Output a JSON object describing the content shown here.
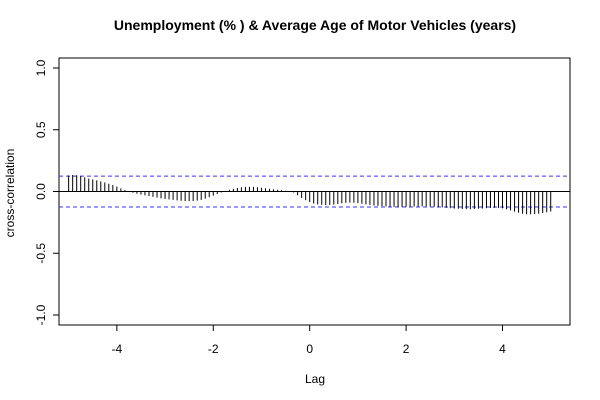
{
  "chart_data": {
    "type": "bar",
    "subtype": "cross-correlation",
    "title": "Unemployment (% ) & Average Age of Motor Vehicles (years)",
    "xlabel": "Lag",
    "ylabel": "cross-correlation",
    "xlim": [
      -5.2,
      5.4
    ],
    "ylim": [
      -1.0,
      1.0
    ],
    "xticks": [
      -4,
      -2,
      0,
      2,
      4
    ],
    "yticks": [
      -1.0,
      -0.5,
      0.0,
      0.5,
      1.0
    ],
    "xtick_labels": [
      "-4",
      "-2",
      "0",
      "2",
      "4"
    ],
    "ytick_labels": [
      "-1.0",
      "-0.5",
      "0.0",
      "0.5",
      "1.0"
    ],
    "confidence_limit": 0.125,
    "lag_range": [
      -5,
      5
    ],
    "lag_step": 0.08333,
    "x": [
      -5.0,
      -4.9167,
      -4.8333,
      -4.75,
      -4.6667,
      -4.5833,
      -4.5,
      -4.4167,
      -4.3333,
      -4.25,
      -4.1667,
      -4.0833,
      -4.0,
      -3.9167,
      -3.8333,
      -3.75,
      -3.6667,
      -3.5833,
      -3.5,
      -3.4167,
      -3.3333,
      -3.25,
      -3.1667,
      -3.0833,
      -3.0,
      -2.9167,
      -2.8333,
      -2.75,
      -2.6667,
      -2.5833,
      -2.5,
      -2.4167,
      -2.3333,
      -2.25,
      -2.1667,
      -2.0833,
      -2.0,
      -1.9167,
      -1.8333,
      -1.75,
      -1.6667,
      -1.5833,
      -1.5,
      -1.4167,
      -1.3333,
      -1.25,
      -1.1667,
      -1.0833,
      -1.0,
      -0.9167,
      -0.8333,
      -0.75,
      -0.6667,
      -0.5833,
      -0.5,
      -0.4167,
      -0.3333,
      -0.25,
      -0.1667,
      -0.0833,
      0.0,
      0.0833,
      0.1667,
      0.25,
      0.3333,
      0.4167,
      0.5,
      0.5833,
      0.6667,
      0.75,
      0.8333,
      0.9167,
      1.0,
      1.0833,
      1.1667,
      1.25,
      1.3333,
      1.4167,
      1.5,
      1.5833,
      1.6667,
      1.75,
      1.8333,
      1.9167,
      2.0,
      2.0833,
      2.1667,
      2.25,
      2.3333,
      2.4167,
      2.5,
      2.5833,
      2.6667,
      2.75,
      2.8333,
      2.9167,
      3.0,
      3.0833,
      3.1667,
      3.25,
      3.3333,
      3.4167,
      3.5,
      3.5833,
      3.6667,
      3.75,
      3.8333,
      3.9167,
      4.0,
      4.0833,
      4.1667,
      4.25,
      4.3333,
      4.4167,
      4.5,
      4.5833,
      4.6667,
      4.75,
      4.8333,
      4.9167,
      5.0
    ],
    "values": [
      0.13,
      0.134,
      0.132,
      0.125,
      0.115,
      0.105,
      0.098,
      0.09,
      0.082,
      0.073,
      0.063,
      0.052,
      0.04,
      0.025,
      0.012,
      0.0,
      -0.01,
      -0.018,
      -0.025,
      -0.031,
      -0.037,
      -0.043,
      -0.049,
      -0.055,
      -0.06,
      -0.064,
      -0.068,
      -0.072,
      -0.075,
      -0.077,
      -0.078,
      -0.077,
      -0.074,
      -0.068,
      -0.058,
      -0.046,
      -0.033,
      -0.02,
      -0.008,
      0.004,
      0.014,
      0.022,
      0.029,
      0.034,
      0.037,
      0.038,
      0.037,
      0.034,
      0.03,
      0.026,
      0.022,
      0.018,
      0.014,
      0.01,
      0.006,
      0.002,
      -0.008,
      -0.03,
      -0.052,
      -0.07,
      -0.085,
      -0.097,
      -0.104,
      -0.108,
      -0.11,
      -0.109,
      -0.106,
      -0.101,
      -0.096,
      -0.092,
      -0.09,
      -0.091,
      -0.094,
      -0.099,
      -0.104,
      -0.109,
      -0.113,
      -0.116,
      -0.119,
      -0.121,
      -0.123,
      -0.124,
      -0.125,
      -0.125,
      -0.124,
      -0.123,
      -0.122,
      -0.121,
      -0.12,
      -0.12,
      -0.121,
      -0.123,
      -0.126,
      -0.129,
      -0.132,
      -0.135,
      -0.138,
      -0.14,
      -0.142,
      -0.143,
      -0.143,
      -0.142,
      -0.14,
      -0.138,
      -0.135,
      -0.133,
      -0.132,
      -0.133,
      -0.137,
      -0.144,
      -0.153,
      -0.163,
      -0.172,
      -0.18,
      -0.184,
      -0.185,
      -0.183,
      -0.179,
      -0.174,
      -0.168,
      -0.162
    ],
    "colors": {
      "bars": "#000000",
      "confidence": "#3333ff",
      "zero_line": "#000000",
      "frame": "#000000"
    }
  }
}
